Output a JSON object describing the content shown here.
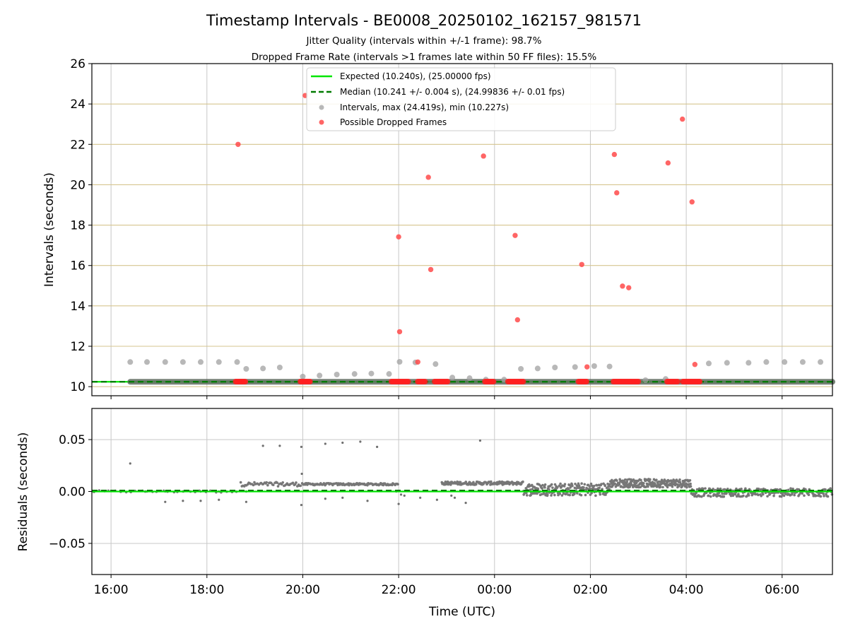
{
  "chart_data": [
    {
      "type": "scatter",
      "title": "Timestamp Intervals - BE0008_20250102_162157_981571",
      "subtitle_1": "Jitter Quality (intervals within +/-1 frame): 98.7%",
      "subtitle_2": "Dropped Frame Rate (intervals >1 frames late within 50 FF files): 15.5%",
      "xlabel": "",
      "ylabel": "Intervals (seconds)",
      "x_unit": "hours since 00:00 UTC (Jan 2 2025)",
      "xlim": [
        -8.4,
        7.05
      ],
      "ylim": [
        9.55,
        26
      ],
      "yticks": [
        10,
        12,
        14,
        16,
        18,
        20,
        22,
        24,
        26
      ],
      "ytick_labels": [
        "10",
        "12",
        "14",
        "16",
        "18",
        "20",
        "22",
        "24",
        "26"
      ],
      "xticks": [
        -8,
        -6,
        -4,
        -2,
        0,
        2,
        4,
        6
      ],
      "xtick_labels": [
        "16:00",
        "18:00",
        "20:00",
        "22:00",
        "00:00",
        "02:00",
        "04:00",
        "06:00"
      ],
      "grid": true,
      "legend_position": "top-center",
      "legend": [
        {
          "label": "Expected (10.240s), (25.00000 fps)",
          "kind": "line",
          "color": "#00e600"
        },
        {
          "label": "Median (10.241 +/- 0.004 s), (24.99836 +/- 0.01 fps)",
          "kind": "dashed",
          "color": "#007a00"
        },
        {
          "label": "Intervals, max (24.419s), min (10.227s)",
          "kind": "marker",
          "color": "#a0a0a0"
        },
        {
          "label": "Possible Dropped Frames",
          "kind": "marker",
          "color": "#ff4a4a"
        }
      ],
      "expected_interval": 10.24,
      "median_interval": 10.241,
      "interval_points": {
        "x": [
          -7.6,
          -7.25,
          -6.87,
          -6.5,
          -6.13,
          -5.75,
          -5.37,
          -5.18,
          -4.83,
          -4.48,
          -4.0,
          -3.65,
          -3.29,
          -2.92,
          -2.57,
          -2.2,
          -1.98,
          -1.65,
          -1.23,
          -0.88,
          -0.52,
          -0.18,
          0.2,
          0.55,
          0.9,
          1.26,
          1.68,
          2.08,
          2.4,
          3.15,
          3.57,
          4.47,
          4.85,
          5.3,
          5.67,
          6.05,
          6.43,
          6.8
        ],
        "y": [
          11.22,
          11.22,
          11.22,
          11.22,
          11.22,
          11.22,
          11.22,
          10.88,
          10.9,
          10.95,
          10.5,
          10.55,
          10.6,
          10.63,
          10.65,
          10.63,
          11.23,
          11.2,
          11.12,
          10.45,
          10.42,
          10.35,
          10.35,
          10.88,
          10.9,
          10.95,
          10.97,
          11.02,
          11.0,
          10.32,
          10.38,
          11.15,
          11.18,
          11.18,
          11.22,
          11.22,
          11.22,
          11.22
        ]
      },
      "interval_band": {
        "x_start": -7.6,
        "x_end": 7.05,
        "y": 10.24
      },
      "dropped_frames": {
        "x": [
          -5.35,
          -3.95,
          -2.0,
          -1.98,
          -1.6,
          -1.38,
          -1.33,
          -0.23,
          0.43,
          0.48,
          1.82,
          1.93,
          2.5,
          2.55,
          2.67,
          2.8,
          3.62,
          3.92,
          4.12,
          4.18
        ],
        "y": [
          22.0,
          24.42,
          17.42,
          12.72,
          11.22,
          20.37,
          15.8,
          21.42,
          17.49,
          13.31,
          16.05,
          10.98,
          21.5,
          19.6,
          14.98,
          14.9,
          21.08,
          23.25,
          19.15,
          11.1
        ]
      },
      "dropped_clusters": [
        {
          "start": -5.4,
          "end": -5.2
        },
        {
          "start": -4.05,
          "end": -3.85
        },
        {
          "start": -2.15,
          "end": -1.8
        },
        {
          "start": -1.6,
          "end": -1.45
        },
        {
          "start": -1.25,
          "end": -0.98
        },
        {
          "start": -0.2,
          "end": -0.02
        },
        {
          "start": 0.28,
          "end": 0.6
        },
        {
          "start": 1.75,
          "end": 1.92
        },
        {
          "start": 2.48,
          "end": 3.0
        },
        {
          "start": 3.6,
          "end": 3.82
        },
        {
          "start": 3.93,
          "end": 4.28
        }
      ]
    },
    {
      "type": "scatter",
      "title": "",
      "xlabel": "Time (UTC)",
      "ylabel": "Residuals (seconds)",
      "xlim": [
        -8.4,
        7.05
      ],
      "ylim": [
        -0.08,
        0.08
      ],
      "yticks": [
        -0.05,
        0.0,
        0.05
      ],
      "ytick_labels": [
        "−0.05",
        "0.00",
        "0.05"
      ],
      "xticks": [
        -8,
        -6,
        -4,
        -2,
        0,
        2,
        4,
        6
      ],
      "xtick_labels": [
        "16:00",
        "18:00",
        "20:00",
        "22:00",
        "00:00",
        "02:00",
        "04:00",
        "06:00"
      ],
      "grid": true,
      "expected_residual": 0.0,
      "median_residual": 0.001,
      "outliers": {
        "x": [
          -7.6,
          -7.25,
          -6.87,
          -6.5,
          -6.13,
          -5.75,
          -5.18,
          -4.83,
          -4.48,
          -4.03,
          -4.02,
          -3.53,
          -3.17,
          -2.8,
          -2.45,
          -2.05,
          -0.3,
          -7.6,
          -6.87,
          -6.5,
          -6.13,
          -5.75,
          -5.18,
          -4.03,
          -3.53,
          -3.17,
          -2.65,
          -2.0,
          -1.95,
          -1.88,
          -1.55,
          -1.2,
          -0.9,
          -0.83,
          -0.6
        ],
        "y": [
          0.027,
          0.0,
          0.0,
          0.0,
          0.0,
          0.0,
          0.0,
          0.044,
          0.044,
          0.043,
          0.017,
          0.046,
          0.047,
          0.048,
          0.043,
          0.0,
          0.049,
          0.0,
          -0.01,
          -0.009,
          -0.009,
          -0.008,
          -0.01,
          -0.013,
          -0.007,
          -0.006,
          -0.009,
          -0.012,
          -0.003,
          -0.004,
          -0.006,
          -0.008,
          -0.004,
          -0.006,
          -0.011
        ]
      },
      "segments": [
        {
          "x_start": -8.4,
          "x_end": -5.3,
          "level": 0.0,
          "spread": 0.001,
          "density": 28
        },
        {
          "x_start": -5.3,
          "x_end": -4.0,
          "level": 0.007,
          "spread": 0.002,
          "density": 55
        },
        {
          "x_start": -4.0,
          "x_end": -2.0,
          "level": 0.007,
          "spread": 0.001,
          "density": 110
        },
        {
          "x_start": -1.1,
          "x_end": 0.6,
          "level": 0.008,
          "spread": 0.0015,
          "density": 140
        },
        {
          "x_start": 0.6,
          "x_end": 2.4,
          "level": 0.002,
          "spread": 0.006,
          "density": 210
        },
        {
          "x_start": 2.4,
          "x_end": 4.1,
          "level": 0.008,
          "spread": 0.004,
          "density": 230
        },
        {
          "x_start": 4.1,
          "x_end": 7.05,
          "level": -0.001,
          "spread": 0.004,
          "density": 260
        }
      ]
    }
  ]
}
